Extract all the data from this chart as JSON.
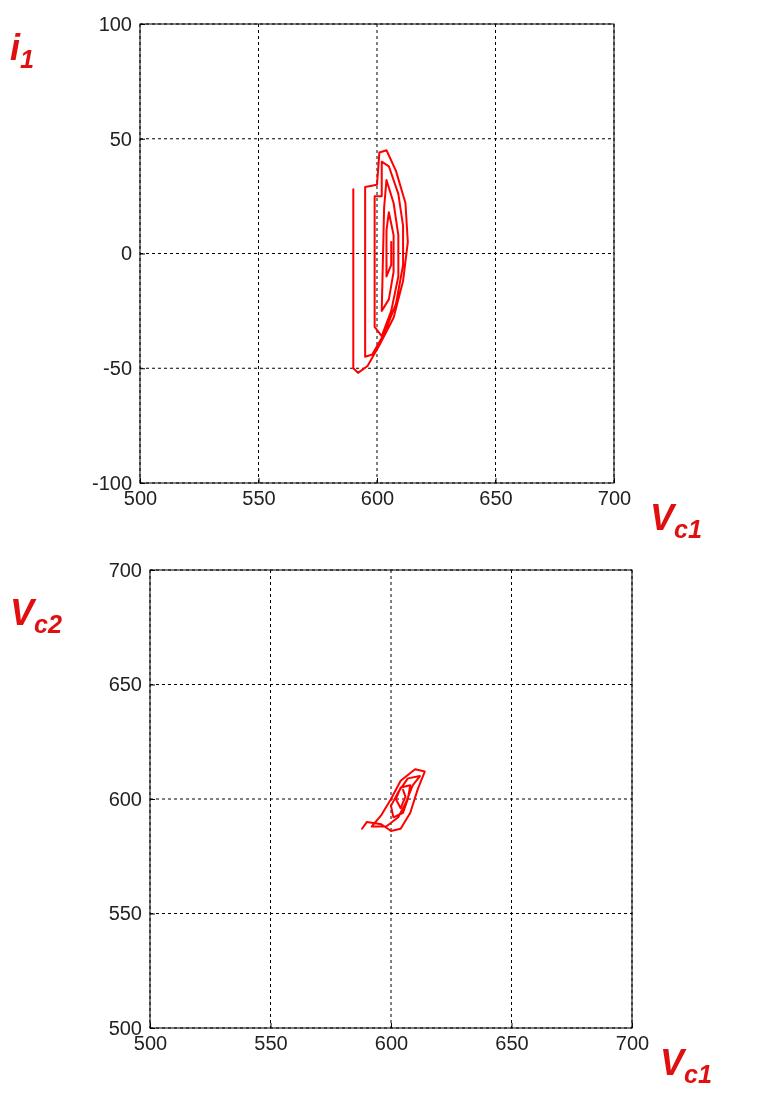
{
  "chart_data": [
    {
      "type": "line",
      "xlabel": "V$_{c1}$",
      "ylabel": "i$_{1}$",
      "xlim": [
        500,
        700
      ],
      "ylim": [
        -100,
        100
      ],
      "xticks": [
        500,
        550,
        600,
        650,
        700
      ],
      "yticks": [
        -100,
        -50,
        0,
        50,
        100
      ],
      "grid": true,
      "series": [
        {
          "color": "#ff0000",
          "x": [
            590,
            590,
            592,
            596,
            601,
            607,
            611,
            613,
            612,
            608,
            604,
            601,
            600,
            595,
            595,
            598,
            603,
            608,
            611,
            611,
            609,
            605,
            602,
            602,
            599,
            599,
            602,
            606,
            609,
            609,
            607,
            604,
            603,
            602,
            605,
            607,
            607,
            605,
            604,
            604,
            606,
            606
          ],
          "values": [
            28,
            -50,
            -52,
            -49,
            -40,
            -28,
            -12,
            5,
            22,
            36,
            45,
            44,
            30,
            29,
            -45,
            -44,
            -35,
            -22,
            -5,
            12,
            26,
            38,
            40,
            25,
            25,
            -32,
            -36,
            -25,
            -10,
            8,
            22,
            32,
            20,
            -25,
            -20,
            -8,
            8,
            18,
            10,
            -10,
            -5,
            5
          ]
        }
      ]
    },
    {
      "type": "line",
      "xlabel": "V$_{c1}$",
      "ylabel": "V$_{c2}$",
      "xlim": [
        500,
        700
      ],
      "ylim": [
        500,
        700
      ],
      "xticks": [
        500,
        550,
        600,
        650,
        700
      ],
      "yticks": [
        500,
        550,
        600,
        650,
        700
      ],
      "grid": true,
      "series": [
        {
          "color": "#ff0000",
          "x": [
            588,
            590,
            596,
            600,
            604,
            608,
            611,
            614,
            610,
            604,
            600,
            596,
            592,
            598,
            603,
            606,
            609,
            612,
            607,
            603,
            600,
            601,
            605,
            607,
            608,
            604,
            602,
            604,
            606,
            605
          ],
          "values": [
            587,
            590,
            589,
            586,
            587,
            594,
            604,
            612,
            613,
            608,
            600,
            593,
            588,
            588,
            592,
            598,
            606,
            610,
            609,
            603,
            597,
            592,
            594,
            600,
            606,
            605,
            600,
            596,
            601,
            604
          ]
        }
      ]
    }
  ]
}
